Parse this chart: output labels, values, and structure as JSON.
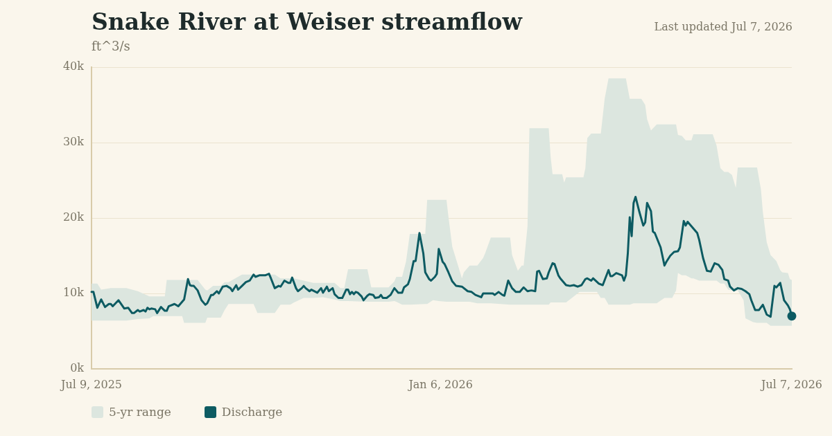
{
  "chart_data": {
    "type": "line",
    "title": "Snake River at Weiser streamflow",
    "ylabel": "ft^3/s",
    "annotations": [
      "Last updated Jul 7, 2026"
    ],
    "xlim": [
      "2025-07-09",
      "2026-07-07"
    ],
    "xticks": [
      {
        "value": "2025-07-09",
        "label": "Jul 9, 2025"
      },
      {
        "value": "2026-01-06",
        "label": "Jan 6, 2026"
      },
      {
        "value": "2026-07-07",
        "label": "Jul 7, 2026"
      }
    ],
    "ylim": [
      0,
      40000
    ],
    "yticks": [
      {
        "value": 0,
        "label": "0k"
      },
      {
        "value": 10000,
        "label": "10k"
      },
      {
        "value": 20000,
        "label": "20k"
      },
      {
        "value": 30000,
        "label": "30k"
      },
      {
        "value": 40000,
        "label": "40k"
      }
    ],
    "grid": "y",
    "legend": "bottom left",
    "series": [
      {
        "name": "5-yr range",
        "type": "area",
        "color": "#dce6df",
        "x": [
          "2025-07-09",
          "2025-07-12",
          "2025-07-14",
          "2025-07-19",
          "2025-07-27",
          "2025-08-02",
          "2025-08-08",
          "2025-08-10",
          "2025-08-16",
          "2025-08-17",
          "2025-08-25",
          "2025-08-26",
          "2025-09-02",
          "2025-09-06",
          "2025-09-07",
          "2025-09-10",
          "2025-09-14",
          "2025-09-16",
          "2025-09-18",
          "2025-09-25",
          "2025-10-01",
          "2025-10-03",
          "2025-10-12",
          "2025-10-15",
          "2025-10-20",
          "2025-10-22",
          "2025-10-27",
          "2025-11-01",
          "2025-11-06",
          "2025-11-12",
          "2025-11-15",
          "2025-11-17",
          "2025-11-19",
          "2025-11-29",
          "2025-12-01",
          "2025-12-10",
          "2025-12-13",
          "2025-12-14",
          "2025-12-17",
          "2025-12-19",
          "2025-12-21",
          "2025-12-29",
          "2025-12-30",
          "2026-01-02",
          "2026-01-05",
          "2026-01-09",
          "2026-01-10",
          "2026-01-12",
          "2026-01-15",
          "2026-01-17",
          "2026-01-18",
          "2026-01-21",
          "2026-01-25",
          "2026-01-28",
          "2026-01-29",
          "2026-02-01",
          "2026-02-11",
          "2026-02-12",
          "2026-02-15",
          "2026-02-17",
          "2026-02-18",
          "2026-02-20",
          "2026-02-21",
          "2026-03-03",
          "2026-03-04",
          "2026-03-05",
          "2026-03-10",
          "2026-03-11",
          "2026-03-12",
          "2026-03-15",
          "2026-03-19",
          "2026-03-21",
          "2026-03-22",
          "2026-03-23",
          "2026-03-25",
          "2026-03-28",
          "2026-03-30",
          "2026-04-01",
          "2026-04-03",
          "2026-04-12",
          "2026-04-14",
          "2026-04-16",
          "2026-04-20",
          "2026-04-22",
          "2026-04-23",
          "2026-04-25",
          "2026-04-28",
          "2026-05-02",
          "2026-05-06",
          "2026-05-08",
          "2026-05-09",
          "2026-05-11",
          "2026-05-13",
          "2026-05-16",
          "2026-05-17",
          "2026-05-20",
          "2026-05-27",
          "2026-05-29",
          "2026-05-31",
          "2026-06-02",
          "2026-06-04",
          "2026-06-06",
          "2026-06-08",
          "2026-06-09",
          "2026-06-12",
          "2026-06-13",
          "2026-06-17",
          "2026-06-19",
          "2026-06-21",
          "2026-06-22",
          "2026-06-24",
          "2026-06-26",
          "2026-06-29",
          "2026-07-01",
          "2026-07-02",
          "2026-07-05",
          "2026-07-06",
          "2026-07-07"
        ],
        "values": [
          null,
          null,
          null,
          null,
          null,
          null,
          null,
          null,
          null,
          null,
          null,
          null,
          null,
          null,
          null,
          null,
          null,
          null,
          null,
          null,
          null,
          null,
          null,
          null,
          null,
          null,
          null,
          null,
          null,
          null,
          null,
          null,
          null,
          null,
          null,
          null,
          null,
          null,
          null,
          null,
          null,
          null,
          null,
          null,
          null,
          null,
          null,
          null,
          null,
          null,
          null,
          null,
          null,
          null,
          null,
          null,
          null,
          null,
          null,
          null,
          null,
          null,
          null,
          null,
          null,
          null,
          null,
          null,
          null,
          null,
          null,
          null,
          null,
          null,
          null,
          null,
          null,
          null,
          null,
          null,
          null,
          null,
          null,
          null,
          null,
          null,
          null,
          null,
          null,
          null,
          null,
          null,
          null,
          null,
          null,
          null,
          null,
          null,
          null,
          null,
          null,
          null,
          null,
          null,
          null,
          null,
          null,
          null,
          null,
          null,
          null,
          null,
          null,
          null,
          null,
          null,
          null,
          null
        ],
        "upper": [
          11300,
          11300,
          10500,
          10700,
          10700,
          10300,
          9600,
          9600,
          9600,
          11800,
          11800,
          11800,
          11800,
          10500,
          10400,
          11000,
          11000,
          11500,
          11500,
          12500,
          12500,
          12500,
          12500,
          12000,
          12000,
          12000,
          11700,
          11400,
          11400,
          11400,
          10700,
          10700,
          13200,
          13200,
          10800,
          10800,
          11600,
          12200,
          12200,
          14200,
          17900,
          17900,
          22400,
          22400,
          22400,
          22400,
          20200,
          16200,
          13700,
          12000,
          12800,
          13700,
          13700,
          14700,
          15300,
          17400,
          17400,
          15100,
          13000,
          13700,
          13700,
          18900,
          31900,
          31900,
          28100,
          25800,
          25800,
          24700,
          25400,
          25400,
          25400,
          25400,
          26600,
          30600,
          31200,
          31200,
          31200,
          35800,
          38500,
          38500,
          35800,
          35800,
          35800,
          35000,
          33100,
          31600,
          32400,
          32400,
          32400,
          32400,
          31000,
          30900,
          30300,
          30300,
          31100,
          31100,
          31100,
          29600,
          26600,
          26100,
          26100,
          25700,
          24000,
          26700,
          26700,
          26700,
          26700,
          26700,
          23800,
          20800,
          16800,
          15100,
          14300,
          13100,
          12800,
          12700,
          11900,
          11800
        ],
        "lower": [
          6400,
          6400,
          6400,
          6400,
          6400,
          6600,
          6700,
          7000,
          7000,
          7000,
          7000,
          6100,
          6100,
          6100,
          6800,
          6800,
          6800,
          7800,
          8600,
          8600,
          8600,
          7400,
          7400,
          8500,
          8500,
          8800,
          9400,
          9400,
          9500,
          9200,
          9000,
          9000,
          9000,
          8900,
          8900,
          8900,
          9000,
          8900,
          8500,
          8500,
          8500,
          8600,
          8600,
          9100,
          9000,
          8900,
          8900,
          8900,
          8900,
          8900,
          8900,
          8900,
          8700,
          8700,
          8700,
          8700,
          8500,
          8500,
          8500,
          8500,
          8500,
          8500,
          8500,
          8500,
          8800,
          8800,
          8800,
          8800,
          8800,
          9400,
          10200,
          10200,
          10200,
          10200,
          10200,
          10200,
          9400,
          9400,
          8500,
          8500,
          8500,
          8700,
          8700,
          8700,
          8700,
          8700,
          8700,
          9400,
          9400,
          10400,
          12700,
          12400,
          12400,
          12000,
          12000,
          11700,
          11700,
          11700,
          11300,
          11300,
          10500,
          10400,
          10400,
          10400,
          9100,
          6700,
          6200,
          6100,
          6100,
          6100,
          6100,
          5700,
          5700,
          5700,
          5700,
          5700,
          5700,
          5700
        ]
      },
      {
        "name": "Discharge",
        "color": "#0d5b62",
        "x": [
          "2025-07-09",
          "2025-07-10",
          "2025-07-12",
          "2025-07-14",
          "2025-07-16",
          "2025-07-18",
          "2025-07-19",
          "2025-07-20",
          "2025-07-23",
          "2025-07-26",
          "2025-07-28",
          "2025-07-30",
          "2025-07-31",
          "2025-08-02",
          "2025-08-03",
          "2025-08-05",
          "2025-08-06",
          "2025-08-07",
          "2025-08-08",
          "2025-08-09",
          "2025-08-11",
          "2025-08-12",
          "2025-08-14",
          "2025-08-16",
          "2025-08-17",
          "2025-08-18",
          "2025-08-21",
          "2025-08-23",
          "2025-08-25",
          "2025-08-26",
          "2025-08-28",
          "2025-08-29",
          "2025-08-30",
          "2025-08-31",
          "2025-09-02",
          "2025-09-04",
          "2025-09-06",
          "2025-09-07",
          "2025-09-09",
          "2025-09-10",
          "2025-09-12",
          "2025-09-13",
          "2025-09-15",
          "2025-09-17",
          "2025-09-19",
          "2025-09-20",
          "2025-09-22",
          "2025-09-23",
          "2025-09-25",
          "2025-09-27",
          "2025-09-29",
          "2025-10-01",
          "2025-10-02",
          "2025-10-04",
          "2025-10-06",
          "2025-10-07",
          "2025-10-09",
          "2025-10-10",
          "2025-10-12",
          "2025-10-14",
          "2025-10-15",
          "2025-10-17",
          "2025-10-19",
          "2025-10-20",
          "2025-10-21",
          "2025-10-23",
          "2025-10-24",
          "2025-10-26",
          "2025-10-27",
          "2025-10-28",
          "2025-10-30",
          "2025-10-31",
          "2025-11-03",
          "2025-11-05",
          "2025-11-06",
          "2025-11-08",
          "2025-11-09",
          "2025-11-11",
          "2025-11-12",
          "2025-11-14",
          "2025-11-16",
          "2025-11-18",
          "2025-11-19",
          "2025-11-20",
          "2025-11-21",
          "2025-11-22",
          "2025-11-23",
          "2025-11-24",
          "2025-11-26",
          "2025-11-27",
          "2025-11-29",
          "2025-11-30",
          "2025-12-02",
          "2025-12-03",
          "2025-12-05",
          "2025-12-06",
          "2025-12-07",
          "2025-12-09",
          "2025-12-11",
          "2025-12-13",
          "2025-12-15",
          "2025-12-17",
          "2025-12-18",
          "2025-12-20",
          "2025-12-21",
          "2025-12-23",
          "2025-12-24",
          "2025-12-26",
          "2025-12-28",
          "2025-12-29",
          "2025-12-31",
          "2026-01-01",
          "2026-01-03",
          "2026-01-04",
          "2026-01-05",
          "2026-01-07",
          "2026-01-08",
          "2026-01-10",
          "2026-01-12",
          "2026-01-14",
          "2026-01-17",
          "2026-01-20",
          "2026-01-22",
          "2026-01-24",
          "2026-01-27",
          "2026-01-28",
          "2026-02-02",
          "2026-02-03",
          "2026-02-05",
          "2026-02-07",
          "2026-02-08",
          "2026-02-10",
          "2026-02-12",
          "2026-02-14",
          "2026-02-16",
          "2026-02-18",
          "2026-02-20",
          "2026-02-22",
          "2026-02-24",
          "2026-02-25",
          "2026-02-26",
          "2026-02-28",
          "2026-03-02",
          "2026-03-03",
          "2026-03-05",
          "2026-03-06",
          "2026-03-08",
          "2026-03-09",
          "2026-03-10",
          "2026-03-12",
          "2026-03-14",
          "2026-03-16",
          "2026-03-18",
          "2026-03-20",
          "2026-03-22",
          "2026-03-23",
          "2026-03-25",
          "2026-03-26",
          "2026-03-29",
          "2026-03-31",
          "2026-04-03",
          "2026-04-04",
          "2026-04-05",
          "2026-04-07",
          "2026-04-08",
          "2026-04-10",
          "2026-04-11",
          "2026-04-12",
          "2026-04-13",
          "2026-04-14",
          "2026-04-15",
          "2026-04-16",
          "2026-04-17",
          "2026-04-19",
          "2026-04-20",
          "2026-04-21",
          "2026-04-22",
          "2026-04-23",
          "2026-04-25",
          "2026-04-26",
          "2026-04-27",
          "2026-04-30",
          "2026-05-02",
          "2026-05-03",
          "2026-05-05",
          "2026-05-07",
          "2026-05-09",
          "2026-05-10",
          "2026-05-12",
          "2026-05-13",
          "2026-05-14",
          "2026-05-16",
          "2026-05-19",
          "2026-05-20",
          "2026-05-22",
          "2026-05-24",
          "2026-05-26",
          "2026-05-28",
          "2026-05-30",
          "2026-06-01",
          "2026-06-02",
          "2026-06-04",
          "2026-06-05",
          "2026-06-07",
          "2026-06-09",
          "2026-06-11",
          "2026-06-13",
          "2026-06-15",
          "2026-06-16",
          "2026-06-18",
          "2026-06-20",
          "2026-06-22",
          "2026-06-24",
          "2026-06-26",
          "2026-06-28",
          "2026-06-29",
          "2026-07-01",
          "2026-07-03",
          "2026-07-05",
          "2026-07-06",
          "2026-07-07"
        ],
        "values": [
          10200,
          10200,
          8100,
          9200,
          8200,
          8600,
          8600,
          8300,
          9100,
          8000,
          8100,
          7400,
          7400,
          7800,
          7600,
          7800,
          7600,
          8100,
          7900,
          8000,
          7900,
          7400,
          8200,
          7700,
          7700,
          8300,
          8600,
          8300,
          8900,
          9200,
          11900,
          11100,
          11000,
          11000,
          10400,
          9100,
          8500,
          8700,
          9800,
          9800,
          10300,
          10000,
          10900,
          11000,
          10700,
          10300,
          11100,
          10500,
          11000,
          11500,
          11700,
          12500,
          12200,
          12400,
          12400,
          12400,
          12600,
          12000,
          10700,
          11000,
          10900,
          11700,
          11400,
          11400,
          12100,
          10700,
          10300,
          10700,
          11000,
          10700,
          10300,
          10500,
          10100,
          10700,
          10100,
          10900,
          10300,
          10700,
          9900,
          9400,
          9400,
          10500,
          10500,
          9900,
          10200,
          9900,
          10200,
          10100,
          9600,
          9100,
          9700,
          9900,
          9800,
          9400,
          9500,
          9800,
          9400,
          9400,
          9800,
          10700,
          10100,
          10100,
          10800,
          11200,
          11900,
          14300,
          14300,
          18000,
          15300,
          12800,
          11900,
          11700,
          12200,
          12600,
          15900,
          14200,
          13900,
          12800,
          11600,
          11000,
          10900,
          10300,
          10200,
          9800,
          9500,
          10000,
          10000,
          9800,
          10200,
          9800,
          9700,
          11700,
          10700,
          10200,
          10200,
          10800,
          10300,
          10400,
          10300,
          12900,
          13000,
          11900,
          12000,
          12800,
          14000,
          13900,
          12400,
          12000,
          11700,
          11100,
          11000,
          11100,
          10900,
          11100,
          11900,
          12000,
          11700,
          12000,
          11300,
          11100,
          13100,
          12300,
          12300,
          12700,
          12600,
          12400,
          11700,
          12400,
          15300,
          20100,
          17600,
          22000,
          22800,
          20800,
          19900,
          19000,
          19400,
          22000,
          20900,
          18200,
          18000,
          16100,
          13700,
          14200,
          15000,
          15500,
          15600,
          16100,
          19600,
          19000,
          19500,
          18900,
          18000,
          17100,
          14700,
          13000,
          12900,
          14000,
          13800,
          13100,
          11900,
          11700,
          10900,
          10400,
          10700,
          10600,
          10300,
          9900,
          9100,
          7800,
          7800,
          8500,
          7200,
          6900,
          11000,
          10800,
          11400,
          9100,
          8400,
          7900,
          7000
        ]
      },
      {
        "type": "scatter",
        "color": "#0d5b62",
        "marker": "circle",
        "x": [
          "2026-07-07"
        ],
        "values": [
          7000
        ]
      }
    ]
  }
}
